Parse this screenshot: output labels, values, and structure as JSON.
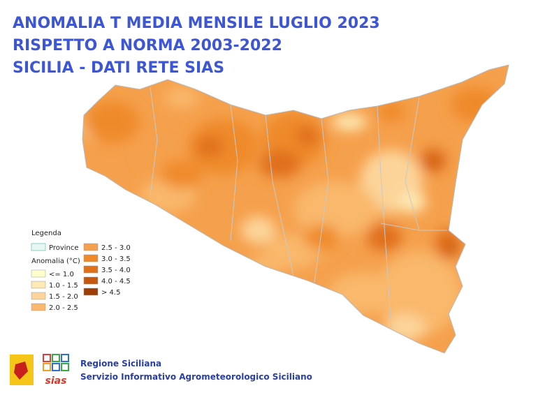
{
  "header": {
    "title_lines": [
      "ANOMALIA T MEDIA MENSILE LUGLIO 2023",
      "RISPETTO A NORMA 2003-2022",
      "SICILIA - DATI RETE SIAS"
    ]
  },
  "legend": {
    "title": "Legenda",
    "province_label": "Province",
    "province_color": "#e8f6f4",
    "anomaly_title": "Anomalia (°C)",
    "classes": [
      {
        "label": "<= 1.0",
        "color": "#ffffcc"
      },
      {
        "label": "1.0 - 1.5",
        "color": "#fde9b4"
      },
      {
        "label": "1.5 - 2.0",
        "color": "#fcd49a"
      },
      {
        "label": "2.0 - 2.5",
        "color": "#f9b86c"
      },
      {
        "label": "2.5 - 3.0",
        "color": "#f5a04c"
      },
      {
        "label": "3.0 - 3.5",
        "color": "#ef8a2c"
      },
      {
        "label": "3.5 - 4.0",
        "color": "#e0701a"
      },
      {
        "label": "4.0 - 4.5",
        "color": "#c55810"
      },
      {
        "label": "> 4.5",
        "color": "#9c3e06"
      }
    ]
  },
  "footer": {
    "logo_text": "sias",
    "org": "Regione Siciliana",
    "service": "Servizio Informativo Agrometeorologico Siciliano"
  }
}
